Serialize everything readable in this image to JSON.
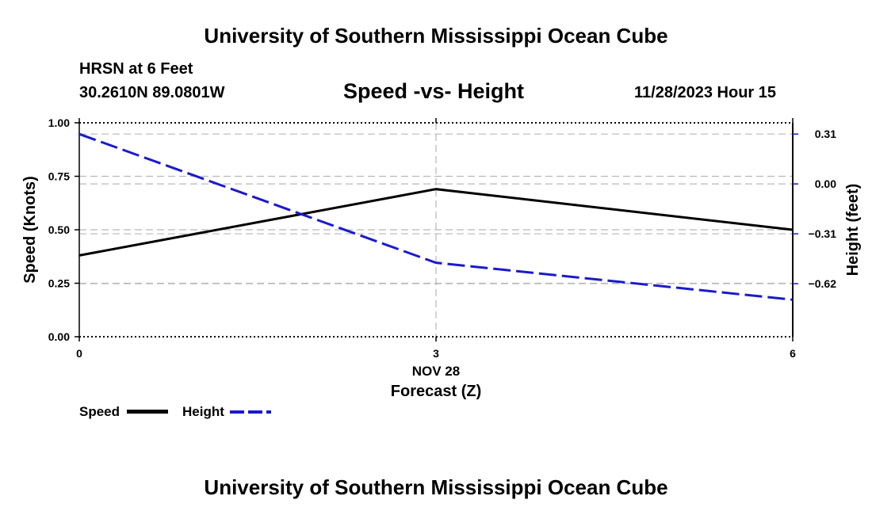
{
  "top_title": "University of Southern Mississippi Ocean Cube",
  "bottom_title": "University of Southern Mississippi Ocean Cube",
  "station": {
    "name": "HRSN at 6 Feet",
    "coords": "30.2610N  89.0801W",
    "datetime": "11/28/2023 Hour 15"
  },
  "chart_data": {
    "type": "line",
    "title": "Speed -vs- Height",
    "x": [
      0,
      3,
      6
    ],
    "x_ticks": [
      0,
      3,
      6
    ],
    "x_tick_labels": [
      "0",
      "3",
      "6"
    ],
    "x_date_label": "NOV 28",
    "xlabel": "Forecast (Z)",
    "xlim": [
      0,
      6
    ],
    "ylabel_left": "Speed (Knots)",
    "ylim_left": [
      0,
      1
    ],
    "yticks_left": [
      0,
      0.25,
      0.5,
      0.75,
      1.0
    ],
    "ytick_labels_left": [
      "0.00",
      "0.25",
      "0.50",
      "0.75",
      "1.00"
    ],
    "ylabel_right": "Height (feet)",
    "ylim_right": [
      -0.95,
      0.38
    ],
    "yticks_right": [
      -0.62,
      -0.31,
      0.0,
      0.31
    ],
    "ytick_labels_right": [
      "−0.62",
      "−0.31",
      "0.00",
      "0.31"
    ],
    "grid": true,
    "series": [
      {
        "name": "Speed",
        "axis": "left",
        "color": "#000000",
        "style": "solid",
        "values": [
          0.38,
          0.69,
          0.5
        ]
      },
      {
        "name": "Height",
        "axis": "right",
        "color": "#1a1acc",
        "style": "dashed",
        "values": [
          0.31,
          -0.49,
          -0.72
        ]
      }
    ],
    "legend": [
      "Speed",
      "Height"
    ],
    "legend_position": "bottom-left"
  }
}
